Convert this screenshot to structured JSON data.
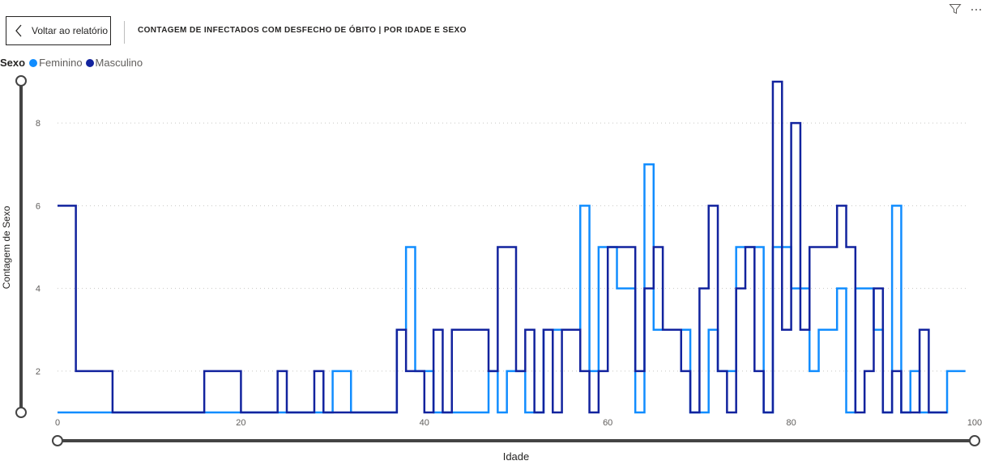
{
  "header": {
    "back_label": "Voltar ao relatório",
    "title": "CONTAGEM DE INFECTADOS COM DESFECHO DE ÓBITO | POR IDADE E SEXO",
    "icons": [
      "filter-icon",
      "more-options-icon"
    ]
  },
  "legend": {
    "title": "Sexo",
    "items": [
      {
        "label": "Feminino",
        "color": "#118DFF"
      },
      {
        "label": "Masculino",
        "color": "#12239E"
      }
    ]
  },
  "chart_data": {
    "type": "line",
    "line_style": "step",
    "xlabel": "Idade",
    "ylabel": "Contagem de Sexo",
    "xlim": [
      0,
      100
    ],
    "ylim": [
      1,
      9
    ],
    "x_ticks": [
      "0",
      "20",
      "40",
      "60",
      "80",
      "100"
    ],
    "y_ticks": [
      "2",
      "4",
      "6",
      "8"
    ],
    "grid": "horizontal-dotted",
    "series": [
      {
        "name": "Feminino",
        "color": "#118DFF",
        "x": [
          0,
          30,
          32,
          37,
          38,
          39,
          40,
          41,
          47,
          48,
          49,
          50,
          51,
          52,
          53,
          54,
          55,
          56,
          57,
          58,
          59,
          60,
          61,
          62,
          63,
          64,
          65,
          66,
          67,
          68,
          69,
          70,
          71,
          72,
          73,
          74,
          75,
          76,
          77,
          78,
          79,
          80,
          81,
          82,
          83,
          84,
          85,
          86,
          87,
          88,
          89,
          90,
          91,
          92,
          93,
          94,
          95,
          96,
          97,
          98
        ],
        "y": [
          1,
          2,
          1,
          3,
          5,
          2,
          2,
          1,
          2,
          1,
          2,
          2,
          1,
          1,
          3,
          3,
          3,
          3,
          6,
          2,
          5,
          5,
          4,
          4,
          1,
          7,
          3,
          3,
          3,
          3,
          1,
          1,
          3,
          2,
          2,
          5,
          5,
          5,
          1,
          5,
          5,
          4,
          4,
          2,
          3,
          3,
          4,
          1,
          4,
          4,
          3,
          1,
          6,
          1,
          2,
          1,
          1,
          1,
          2,
          2
        ]
      },
      {
        "name": "Masculino",
        "color": "#12239E",
        "x": [
          0,
          2,
          6,
          16,
          20,
          24,
          25,
          28,
          29,
          30,
          37,
          38,
          39,
          40,
          41,
          42,
          43,
          46,
          47,
          48,
          50,
          51,
          52,
          53,
          54,
          55,
          56,
          57,
          58,
          59,
          60,
          61,
          63,
          64,
          65,
          66,
          67,
          68,
          69,
          70,
          71,
          72,
          73,
          74,
          75,
          76,
          77,
          78,
          79,
          80,
          81,
          82,
          83,
          84,
          85,
          86,
          87,
          88,
          89,
          90,
          91,
          92,
          94,
          95,
          96
        ],
        "y": [
          6,
          2,
          1,
          2,
          1,
          2,
          1,
          2,
          1,
          1,
          3,
          2,
          2,
          1,
          3,
          1,
          3,
          3,
          2,
          5,
          2,
          3,
          1,
          3,
          1,
          3,
          3,
          2,
          1,
          2,
          5,
          5,
          2,
          4,
          5,
          3,
          3,
          2,
          1,
          4,
          6,
          2,
          1,
          4,
          5,
          2,
          1,
          9,
          3,
          8,
          3,
          5,
          5,
          5,
          6,
          5,
          1,
          2,
          4,
          1,
          2,
          1,
          3,
          1,
          1
        ]
      }
    ]
  }
}
